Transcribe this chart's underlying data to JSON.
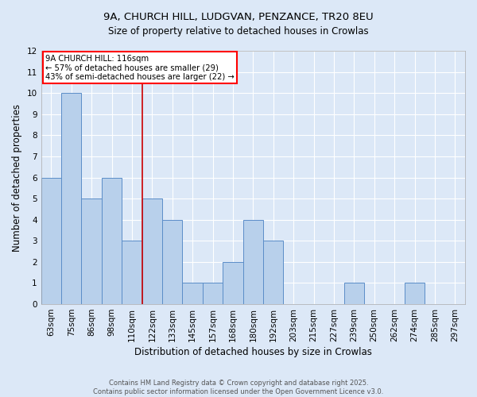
{
  "title_line1": "9A, CHURCH HILL, LUDGVAN, PENZANCE, TR20 8EU",
  "title_line2": "Size of property relative to detached houses in Crowlas",
  "xlabel": "Distribution of detached houses by size in Crowlas",
  "ylabel": "Number of detached properties",
  "categories": [
    "63sqm",
    "75sqm",
    "86sqm",
    "98sqm",
    "110sqm",
    "122sqm",
    "133sqm",
    "145sqm",
    "157sqm",
    "168sqm",
    "180sqm",
    "192sqm",
    "203sqm",
    "215sqm",
    "227sqm",
    "239sqm",
    "250sqm",
    "262sqm",
    "274sqm",
    "285sqm",
    "297sqm"
  ],
  "values": [
    6,
    10,
    5,
    6,
    3,
    5,
    4,
    1,
    1,
    2,
    4,
    3,
    0,
    0,
    0,
    1,
    0,
    0,
    1,
    0,
    0
  ],
  "bar_color": "#b8d0eb",
  "bar_edge_color": "#5b8dc8",
  "annotation_text": "9A CHURCH HILL: 116sqm\n← 57% of detached houses are smaller (29)\n43% of semi-detached houses are larger (22) →",
  "annotation_box_color": "white",
  "annotation_box_edge_color": "red",
  "ylim": [
    0,
    12
  ],
  "yticks": [
    0,
    1,
    2,
    3,
    4,
    5,
    6,
    7,
    8,
    9,
    10,
    11,
    12
  ],
  "footer_line1": "Contains HM Land Registry data © Crown copyright and database right 2025.",
  "footer_line2": "Contains public sector information licensed under the Open Government Licence v3.0.",
  "background_color": "#dce8f7",
  "plot_bg_color": "#dce8f7",
  "grid_color": "white",
  "ref_line_color": "#cc0000",
  "ref_line_x": 4.5
}
